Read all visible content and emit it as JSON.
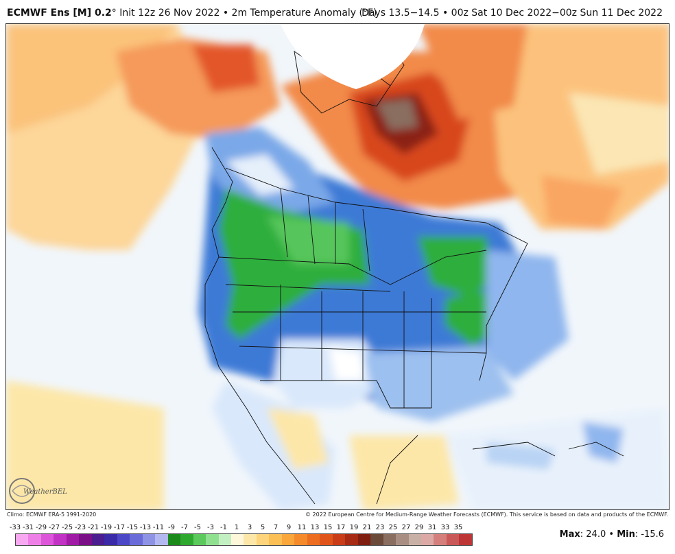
{
  "header": {
    "model": "ECMWF Ens [M] 0.2",
    "degree": "°",
    "init": "Init 12z 26 Nov 2022",
    "bullet": "•",
    "variable": "2m Temperature Anomaly (°F)",
    "valid": "Days 13.5−14.5 • 00z Sat 10 Dec 2022−00z Sun 11 Dec 2022"
  },
  "footer": {
    "climo": "Climo: ECMWF ERA-5 1991-2020",
    "copyright": "© 2022 European Centre for Medium-Range Weather Forecasts (ECMWF). This service is based on data and products of the ECMWF."
  },
  "logo": {
    "text": "WeatherBELL"
  },
  "colorbar": {
    "labels": [
      "-33",
      "-31",
      "-29",
      "-27",
      "-25",
      "-23",
      "-21",
      "-19",
      "-17",
      "-15",
      "-13",
      "-11",
      "-9",
      "-7",
      "-5",
      "-3",
      "-1",
      "1",
      "3",
      "5",
      "7",
      "9",
      "11",
      "13",
      "15",
      "17",
      "19",
      "21",
      "23",
      "25",
      "27",
      "29",
      "31",
      "33",
      "35"
    ],
    "colors": [
      "#f7a8f0",
      "#ee7fe6",
      "#dd55d8",
      "#c232c4",
      "#a01aa6",
      "#7a0f87",
      "#4b1d8f",
      "#3a2aa8",
      "#4b47c6",
      "#6a6bd8",
      "#8e93e6",
      "#b3b8f0",
      "#1b8a1b",
      "#2fa82f",
      "#5cc95c",
      "#8fe08f",
      "#c2f0c2",
      "#fff7d9",
      "#fde7a8",
      "#fdd47c",
      "#fcbf55",
      "#f9a63a",
      "#f48a2a",
      "#ec6d1f",
      "#e0541a",
      "#c83c17",
      "#a62a14",
      "#7f1d11",
      "#6b4a3a",
      "#8a6e60",
      "#a98f83",
      "#c8b0a6",
      "#dca9a6",
      "#d47f7b",
      "#c95858",
      "#bd3535"
    ]
  },
  "stats": {
    "max_label": "Max",
    "max_value": "24.0",
    "sep": "•",
    "min_label": "Min",
    "min_value": "-15.6"
  }
}
